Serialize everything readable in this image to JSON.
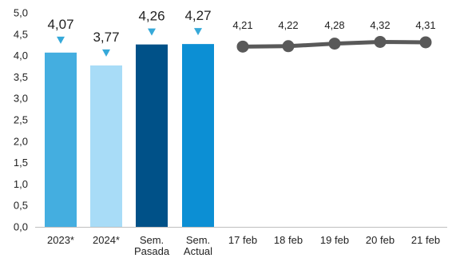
{
  "chart_data": {
    "type": "bar",
    "y_ticks": [
      "0,0",
      "0,5",
      "1,0",
      "1,5",
      "2,0",
      "2,5",
      "3,0",
      "3,5",
      "4,0",
      "4,5",
      "5,0"
    ],
    "ylim": [
      0,
      5
    ],
    "grid": false,
    "bars": [
      {
        "category": [
          "2023*"
        ],
        "value": 4.07,
        "label": "4,07",
        "color": "#44aee0",
        "marker": true
      },
      {
        "category": [
          "2024*"
        ],
        "value": 3.77,
        "label": "3,77",
        "color": "#a8dcf7",
        "marker": true
      },
      {
        "category": [
          "Sem.",
          "Pasada"
        ],
        "value": 4.26,
        "label": "4,26",
        "color": "#005188",
        "marker": true
      },
      {
        "category": [
          "Sem.",
          "Actual"
        ],
        "value": 4.27,
        "label": "4,27",
        "color": "#0c8fd4",
        "marker": true
      }
    ],
    "line": {
      "color": "#595959",
      "points": [
        {
          "x": "17 feb",
          "y": 4.21,
          "label": "4,21"
        },
        {
          "x": "18 feb",
          "y": 4.22,
          "label": "4,22"
        },
        {
          "x": "19 feb",
          "y": 4.28,
          "label": "4,28"
        },
        {
          "x": "20 feb",
          "y": 4.32,
          "label": "4,32"
        },
        {
          "x": "21 feb",
          "y": 4.31,
          "label": "4,31"
        }
      ]
    },
    "marker_color": "#36a9d9"
  }
}
